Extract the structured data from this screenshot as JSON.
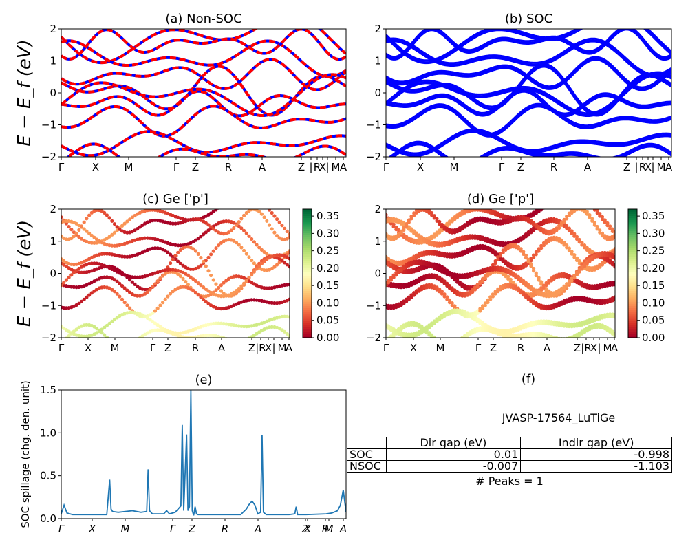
{
  "figure": {
    "ylabel_band": "E − E_f (eV)",
    "kpath": [
      "Γ",
      "X",
      "M",
      "Γ",
      "Z",
      "R",
      "A",
      "Z | R",
      "X | M",
      "A"
    ]
  },
  "chart_data": [
    {
      "id": "a",
      "type": "line",
      "title": "(a) Non-SOC",
      "ylabel": "E − E_f (eV)",
      "ylim": [
        -2,
        2
      ],
      "yticks": [
        "−2",
        "−1",
        "0",
        "1",
        "2"
      ],
      "xticks": [
        "Γ",
        "X",
        "M",
        "Γ",
        "Z",
        "R",
        "A",
        "Z",
        "|",
        "R",
        "X",
        "|",
        "M",
        "A"
      ],
      "series": [
        {
          "color": "#ff0000"
        },
        {
          "color": "#0000ff"
        }
      ]
    },
    {
      "id": "b",
      "type": "line",
      "title": "(b) SOC",
      "ylim": [
        -2,
        2
      ],
      "yticks": [
        "−2",
        "−1",
        "0",
        "1",
        "2"
      ],
      "xticks": [
        "Γ",
        "X",
        "M",
        "Γ",
        "Z",
        "R",
        "A",
        "Z",
        "|",
        "R",
        "X",
        "|",
        "M",
        "A"
      ],
      "series": [
        {
          "color": "#0000ff"
        }
      ]
    },
    {
      "id": "c",
      "type": "scatter",
      "title": "(c)  Ge ['p']",
      "ylabel": "E − E_f (eV)",
      "ylim": [
        -2,
        2
      ],
      "yticks": [
        "−2",
        "−1",
        "0",
        "1",
        "2"
      ],
      "xticks": [
        "Γ",
        "X",
        "M",
        "Γ",
        "Z",
        "R",
        "A",
        "Z",
        "|R",
        "X",
        "|",
        "M",
        "A"
      ],
      "colorbar": {
        "min": 0.0,
        "max": 0.37,
        "ticks": [
          "0.00",
          "0.05",
          "0.10",
          "0.15",
          "0.20",
          "0.25",
          "0.30",
          "0.35"
        ],
        "cmap": "RdYlGn"
      }
    },
    {
      "id": "d",
      "type": "scatter",
      "title": "(d) Ge ['p']",
      "ylim": [
        -2,
        2
      ],
      "yticks": [
        "−2",
        "−1",
        "0",
        "1",
        "2"
      ],
      "xticks": [
        "Γ",
        "X",
        "M",
        "Γ",
        "Z",
        "R",
        "A",
        "Z",
        "|R",
        "X",
        "|",
        "M",
        "A"
      ],
      "colorbar": {
        "min": 0.0,
        "max": 0.37,
        "ticks": [
          "0.00",
          "0.05",
          "0.10",
          "0.15",
          "0.20",
          "0.25",
          "0.30",
          "0.35"
        ],
        "cmap": "RdYlGn"
      }
    },
    {
      "id": "e",
      "type": "line",
      "title": "(e)",
      "ylabel": "SOC spillage (chg. den. unit)",
      "ylim": [
        0,
        1.62
      ],
      "yticks": [
        "0.0",
        "0.5",
        "1.0",
        "1.5"
      ],
      "xticks": [
        "Γ",
        "X",
        "M",
        "Γ",
        "Z",
        "R",
        "A",
        "Z",
        "X",
        "R",
        "M",
        "A"
      ],
      "series": [
        {
          "color": "#1f77b4",
          "x": [
            0,
            0.01,
            0.02,
            0.04,
            0.06,
            0.08,
            0.12,
            0.16,
            0.17,
            0.175,
            0.18,
            0.2,
            0.25,
            0.28,
            0.3,
            0.305,
            0.31,
            0.32,
            0.36,
            0.37,
            0.38,
            0.4,
            0.42,
            0.425,
            0.43,
            0.44,
            0.445,
            0.45,
            0.455,
            0.46,
            0.465,
            0.47,
            0.475,
            0.48,
            0.5,
            0.6,
            0.63,
            0.65,
            0.66,
            0.67,
            0.68,
            0.69,
            0.7,
            0.705,
            0.71,
            0.72,
            0.74,
            0.8,
            0.82,
            0.825,
            0.83,
            0.86,
            0.93,
            0.95,
            0.97,
            0.98,
            0.99,
            1.0
          ],
          "values": [
            0.06,
            0.17,
            0.07,
            0.05,
            0.05,
            0.05,
            0.05,
            0.05,
            0.49,
            0.12,
            0.09,
            0.08,
            0.1,
            0.08,
            0.09,
            0.62,
            0.1,
            0.06,
            0.06,
            0.1,
            0.06,
            0.08,
            0.16,
            1.18,
            0.1,
            1.06,
            0.1,
            0.15,
            1.62,
            0.1,
            0.04,
            0.15,
            0.06,
            0.05,
            0.05,
            0.05,
            0.05,
            0.12,
            0.18,
            0.22,
            0.17,
            0.06,
            0.08,
            1.05,
            0.08,
            0.05,
            0.05,
            0.05,
            0.06,
            0.15,
            0.05,
            0.05,
            0.06,
            0.07,
            0.1,
            0.17,
            0.36,
            0.08
          ]
        }
      ]
    }
  ],
  "panel_f": {
    "title": "(f)",
    "material": "JVASP-17564_LuTiGe",
    "table": {
      "headers": [
        "Dir gap (eV)",
        "Indir gap (eV)"
      ],
      "rows": [
        {
          "label": "SOC",
          "dir": "0.01",
          "indir": "-0.998"
        },
        {
          "label": "NSOC",
          "dir": "-0.007",
          "indir": "-1.103"
        }
      ]
    },
    "peaks": "# Peaks = 1"
  }
}
